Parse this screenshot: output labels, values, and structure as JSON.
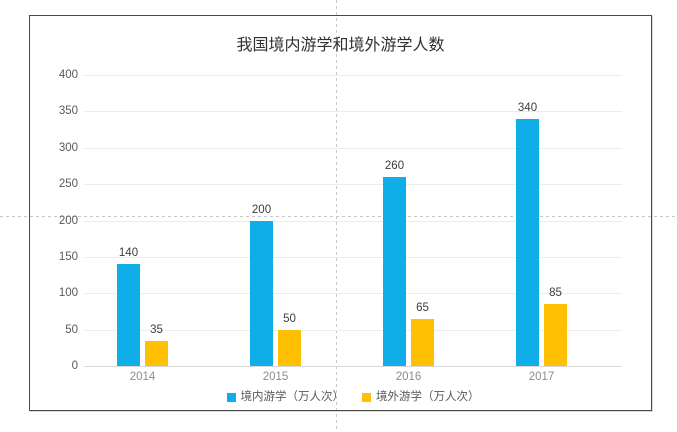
{
  "chart_data": {
    "type": "bar",
    "title": "我国境内游学和境外游学人数",
    "categories": [
      "2014",
      "2015",
      "2016",
      "2017"
    ],
    "series": [
      {
        "name": "境内游学（万人次）",
        "color": "#10aee9",
        "values": [
          140,
          200,
          260,
          340
        ]
      },
      {
        "name": "境外游学（万人次）",
        "color": "#ffc003",
        "values": [
          35,
          50,
          65,
          85
        ]
      }
    ],
    "ylim": [
      0,
      400
    ],
    "yticks": [
      0,
      50,
      100,
      150,
      200,
      250,
      300,
      350,
      400
    ],
    "xlabel": "",
    "ylabel": "",
    "grid": true,
    "legend_position": "bottom",
    "data_labels": true
  },
  "colors": {
    "gridline": "#ececec",
    "axis_line": "#d9d9d9",
    "tick_label": "#595959",
    "category_label": "#8c8c8c",
    "data_label": "#3d3d3d",
    "title": "#303030",
    "frame_border": "#4a4a4a",
    "guide": "#c6c6c6",
    "background": "#ffffff"
  }
}
